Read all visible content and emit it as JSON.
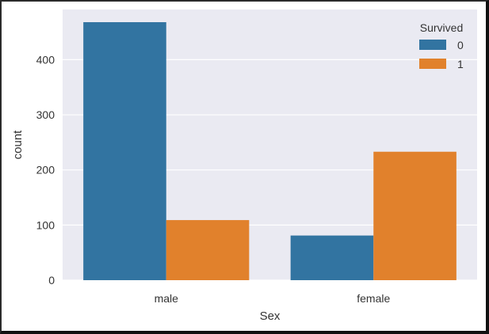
{
  "chart_data": {
    "type": "bar",
    "categories": [
      "male",
      "female"
    ],
    "series": [
      {
        "name": "0",
        "values": [
          468,
          81
        ],
        "color": "#3274a1"
      },
      {
        "name": "1",
        "values": [
          109,
          233
        ],
        "color": "#e1812c"
      }
    ],
    "xlabel": "Sex",
    "ylabel": "count",
    "ylim": [
      0,
      491
    ],
    "yticks": [
      0,
      100,
      200,
      300,
      400
    ],
    "grid": true,
    "legend": {
      "title": "Survived",
      "placement": "top-right"
    },
    "colors": {
      "plot_background": "#eaeaf2",
      "grid": "#ffffff"
    }
  }
}
